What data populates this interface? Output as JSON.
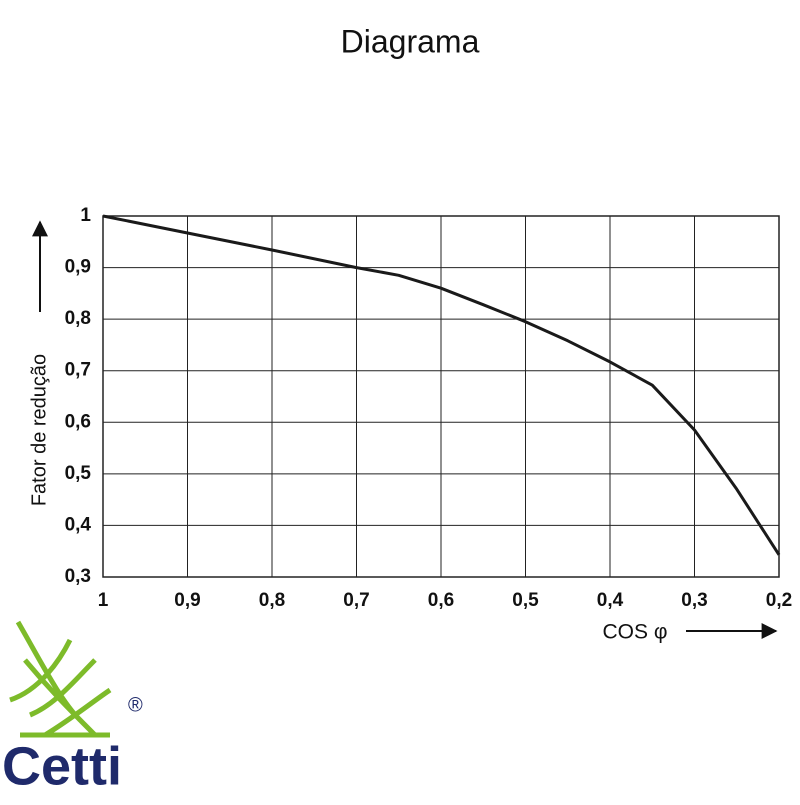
{
  "chart_data": {
    "type": "line",
    "title": "Diagrama",
    "x_label": "COS φ",
    "y_label": "Fator de redução",
    "x": [
      1,
      0.9,
      0.8,
      0.7,
      0.65,
      0.6,
      0.55,
      0.5,
      0.45,
      0.4,
      0.35,
      0.3,
      0.25,
      0.2
    ],
    "series": [
      {
        "name": "Fator de redução",
        "color": "#1a1a1a",
        "values": [
          1,
          0.967,
          0.934,
          0.9,
          0.885,
          0.86,
          0.828,
          0.795,
          0.758,
          0.717,
          0.672,
          0.585,
          0.47,
          0.343
        ]
      }
    ],
    "xlim": [
      1,
      0.2
    ],
    "xticks": [
      1,
      {
        "value": 0.9,
        "label": "0,9"
      },
      {
        "value": 0.8,
        "label": "0,8"
      },
      {
        "value": 0.7,
        "label": "0,7"
      },
      {
        "value": 0.6,
        "label": "0,6"
      },
      {
        "value": 0.5,
        "label": "0,5"
      },
      {
        "value": 0.4,
        "label": "0,4"
      },
      {
        "value": 0.3,
        "label": "0,3"
      },
      {
        "value": 0.2,
        "label": "0,2"
      }
    ],
    "ylim": [
      0.3,
      1
    ],
    "yticks": [
      {
        "value": 0.3,
        "label": "0,3"
      },
      {
        "value": 0.4,
        "label": "0,4"
      },
      {
        "value": 0.5,
        "label": "0,5"
      },
      {
        "value": 0.6,
        "label": "0,6"
      },
      {
        "value": 0.7,
        "label": "0,7"
      },
      {
        "value": 0.8,
        "label": "0,8"
      },
      {
        "value": 0.9,
        "label": "0,9"
      },
      1
    ],
    "grid": true
  },
  "logo": {
    "name": "Cetti",
    "mark": "®"
  }
}
